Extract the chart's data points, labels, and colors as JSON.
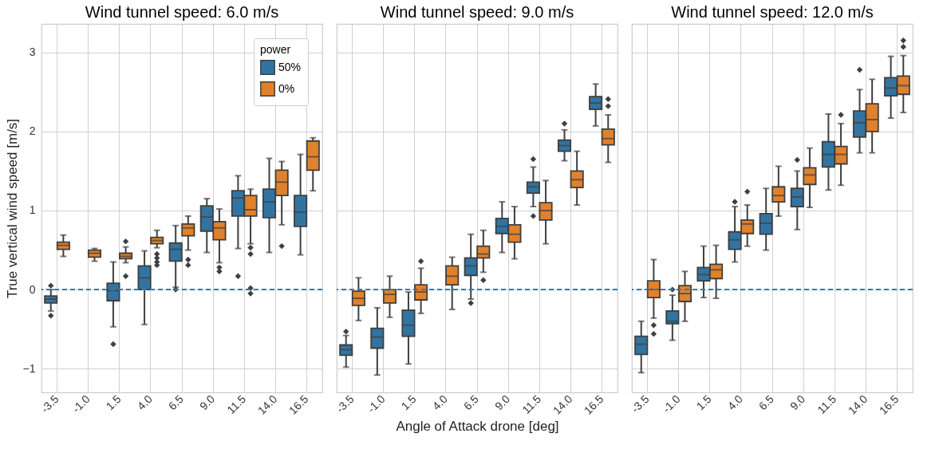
{
  "chart_data": [
    {
      "type": "box",
      "title": "Wind tunnel speed: 6.0 m/s",
      "ylabel": "True vertical wind speed [m/s]",
      "legend_title": "power",
      "legend": "top right",
      "grid": true,
      "categories": [
        "-3.5",
        "-1.0",
        "1.5",
        "4.0",
        "6.5",
        "9.0",
        "11.5",
        "14.0",
        "16.5"
      ],
      "ylim": [
        -1.3,
        3.36
      ],
      "yticks": [
        -1,
        0,
        1,
        2,
        3
      ],
      "ref_lines": [
        {
          "axis": "y",
          "value": 0,
          "color": "#2b7bba",
          "line_style": "dashed"
        }
      ],
      "series": [
        {
          "name": "50%",
          "color": "#3274a1",
          "boxes": [
            {
              "low": -0.27,
              "q1": -0.17,
              "median": -0.12,
              "q3": -0.08,
              "high": 0.0,
              "outliers": [
                0.05,
                -0.33
              ]
            },
            null,
            {
              "low": -0.47,
              "q1": -0.14,
              "median": -0.01,
              "q3": 0.08,
              "high": 0.35,
              "outliers": [
                -0.69
              ]
            },
            {
              "low": -0.44,
              "q1": 0.0,
              "median": 0.15,
              "q3": 0.3,
              "high": 0.49
            },
            {
              "low": 0.03,
              "q1": 0.36,
              "median": 0.51,
              "q3": 0.59,
              "high": 0.81,
              "outliers": [
                0.0
              ]
            },
            {
              "low": 0.47,
              "q1": 0.74,
              "median": 0.92,
              "q3": 1.06,
              "high": 1.15
            },
            {
              "low": 0.52,
              "q1": 0.93,
              "median": 1.16,
              "q3": 1.25,
              "high": 1.44,
              "outliers": [
                0.17
              ]
            },
            {
              "low": 0.47,
              "q1": 0.91,
              "median": 1.11,
              "q3": 1.27,
              "high": 1.66
            },
            {
              "low": 0.44,
              "q1": 0.8,
              "median": 0.98,
              "q3": 1.19,
              "high": 1.71
            }
          ]
        },
        {
          "name": "0%",
          "color": "#e1812c",
          "boxes": [
            {
              "low": 0.42,
              "q1": 0.51,
              "median": 0.56,
              "q3": 0.6,
              "high": 0.69
            },
            {
              "low": 0.36,
              "q1": 0.41,
              "median": 0.46,
              "q3": 0.5,
              "high": 0.52
            },
            {
              "low": 0.34,
              "q1": 0.39,
              "median": 0.42,
              "q3": 0.46,
              "high": 0.54,
              "outliers": [
                0.61,
                0.17
              ]
            },
            {
              "low": 0.53,
              "q1": 0.58,
              "median": 0.62,
              "q3": 0.66,
              "high": 0.75,
              "outliers": [
                0.45,
                0.4,
                0.35,
                0.31
              ]
            },
            {
              "low": 0.5,
              "q1": 0.68,
              "median": 0.78,
              "q3": 0.83,
              "high": 0.93,
              "outliers": [
                0.38,
                0.31
              ]
            },
            {
              "low": 0.34,
              "q1": 0.63,
              "median": 0.78,
              "q3": 0.86,
              "high": 1.02,
              "outliers": [
                0.28,
                0.23
              ]
            },
            {
              "low": 0.58,
              "q1": 0.93,
              "median": 1.01,
              "q3": 1.19,
              "high": 1.27,
              "outliers": [
                0.53,
                0.45,
                0.02,
                -0.05
              ]
            },
            {
              "low": 0.82,
              "q1": 1.19,
              "median": 1.36,
              "q3": 1.51,
              "high": 1.62,
              "outliers": [
                0.55
              ]
            },
            {
              "low": 1.25,
              "q1": 1.51,
              "median": 1.68,
              "q3": 1.88,
              "high": 1.92
            }
          ]
        }
      ]
    },
    {
      "type": "box",
      "title": "Wind tunnel speed: 9.0 m/s",
      "xlabel": "Angle of Attack drone [deg]",
      "grid": true,
      "tick_labels": "x",
      "categories": [
        "-3.5",
        "-1.0",
        "1.5",
        "4.0",
        "6.5",
        "9.0",
        "11.5",
        "14.0",
        "16.5"
      ],
      "ylim": [
        -1.3,
        3.36
      ],
      "yticks": [
        -1,
        0,
        1,
        2,
        3
      ],
      "ref_lines": [
        {
          "axis": "y",
          "value": 0,
          "color": "#2b7bba",
          "line_style": "dashed"
        }
      ],
      "series": [
        {
          "color": "#3274a1",
          "boxes": [
            {
              "low": -0.98,
              "q1": -0.83,
              "median": -0.76,
              "q3": -0.7,
              "high": -0.58,
              "outliers": [
                -0.53
              ]
            },
            {
              "low": -1.08,
              "q1": -0.74,
              "median": -0.6,
              "q3": -0.49,
              "high": -0.23
            },
            {
              "low": -0.94,
              "q1": -0.59,
              "median": -0.45,
              "q3": -0.26,
              "high": -0.03
            },
            null,
            {
              "low": -0.12,
              "q1": 0.18,
              "median": 0.3,
              "q3": 0.4,
              "high": 0.7,
              "outliers": [
                -0.17
              ]
            },
            {
              "low": 0.47,
              "q1": 0.71,
              "median": 0.8,
              "q3": 0.9,
              "high": 1.11
            },
            {
              "low": 1.05,
              "q1": 1.22,
              "median": 1.3,
              "q3": 1.36,
              "high": 1.55,
              "outliers": [
                1.65,
                0.93
              ]
            },
            {
              "low": 1.63,
              "q1": 1.75,
              "median": 1.82,
              "q3": 1.89,
              "high": 2.02,
              "outliers": [
                2.1
              ]
            },
            {
              "low": 2.07,
              "q1": 2.28,
              "median": 2.36,
              "q3": 2.44,
              "high": 2.6
            }
          ]
        },
        {
          "color": "#e1812c",
          "boxes": [
            {
              "low": -0.39,
              "q1": -0.2,
              "median": -0.11,
              "q3": -0.02,
              "high": 0.15
            },
            {
              "low": -0.35,
              "q1": -0.17,
              "median": -0.06,
              "q3": 0.0,
              "high": 0.17
            },
            {
              "low": -0.3,
              "q1": -0.13,
              "median": -0.03,
              "q3": 0.06,
              "high": 0.27,
              "outliers": [
                0.36
              ]
            },
            {
              "low": -0.25,
              "q1": 0.06,
              "median": 0.17,
              "q3": 0.3,
              "high": 0.41
            },
            {
              "low": 0.22,
              "q1": 0.4,
              "median": 0.45,
              "q3": 0.55,
              "high": 0.75,
              "outliers": [
                0.12
              ]
            },
            {
              "low": 0.39,
              "q1": 0.6,
              "median": 0.7,
              "q3": 0.82,
              "high": 1.05
            },
            {
              "low": 0.58,
              "q1": 0.88,
              "median": 1.0,
              "q3": 1.1,
              "high": 1.38
            },
            {
              "low": 1.07,
              "q1": 1.29,
              "median": 1.39,
              "q3": 1.5,
              "high": 1.75
            },
            {
              "low": 1.61,
              "q1": 1.83,
              "median": 1.91,
              "q3": 2.03,
              "high": 2.21,
              "outliers": [
                2.41,
                2.32
              ]
            }
          ]
        }
      ]
    },
    {
      "type": "box",
      "title": "Wind tunnel speed: 12.0 m/s",
      "grid": true,
      "tick_labels": "x",
      "categories": [
        "-3.5",
        "-1.0",
        "1.5",
        "4.0",
        "6.5",
        "9.0",
        "11.5",
        "14.0",
        "16.5"
      ],
      "ylim": [
        -1.3,
        3.36
      ],
      "yticks": [
        -1,
        0,
        1,
        2,
        3
      ],
      "ref_lines": [
        {
          "axis": "y",
          "value": 0,
          "color": "#2b7bba",
          "line_style": "dashed"
        }
      ],
      "series": [
        {
          "color": "#3274a1",
          "boxes": [
            {
              "low": -1.05,
              "q1": -0.82,
              "median": -0.69,
              "q3": -0.59,
              "high": -0.4
            },
            {
              "low": -0.64,
              "q1": -0.43,
              "median": -0.4,
              "q3": -0.27,
              "high": -0.07,
              "outliers": [
                0.0
              ]
            },
            {
              "low": -0.1,
              "q1": 0.11,
              "median": 0.19,
              "q3": 0.28,
              "high": 0.55
            },
            {
              "low": 0.35,
              "q1": 0.51,
              "median": 0.63,
              "q3": 0.73,
              "high": 1.05,
              "outliers": [
                1.11
              ]
            },
            {
              "low": 0.5,
              "q1": 0.7,
              "median": 0.84,
              "q3": 0.96,
              "high": 1.28
            },
            {
              "low": 0.76,
              "q1": 1.05,
              "median": 1.17,
              "q3": 1.28,
              "high": 1.5,
              "outliers": [
                1.64
              ]
            },
            {
              "low": 1.26,
              "q1": 1.55,
              "median": 1.71,
              "q3": 1.87,
              "high": 2.22
            },
            {
              "low": 1.73,
              "q1": 1.93,
              "median": 2.11,
              "q3": 2.26,
              "high": 2.53,
              "outliers": [
                2.78
              ]
            },
            {
              "low": 2.17,
              "q1": 2.45,
              "median": 2.55,
              "q3": 2.68,
              "high": 2.95
            }
          ]
        },
        {
          "color": "#e1812c",
          "boxes": [
            {
              "low": -0.36,
              "q1": -0.1,
              "median": 0.0,
              "q3": 0.11,
              "high": 0.38,
              "outliers": [
                -0.45,
                -0.56
              ]
            },
            {
              "low": -0.4,
              "q1": -0.15,
              "median": -0.05,
              "q3": 0.05,
              "high": 0.23
            },
            {
              "low": -0.11,
              "q1": 0.14,
              "median": 0.25,
              "q3": 0.32,
              "high": 0.56
            },
            {
              "low": 0.55,
              "q1": 0.71,
              "median": 0.83,
              "q3": 0.88,
              "high": 1.07,
              "outliers": [
                1.24
              ]
            },
            {
              "low": 0.93,
              "q1": 1.11,
              "median": 1.19,
              "q3": 1.3,
              "high": 1.56
            },
            {
              "low": 1.04,
              "q1": 1.33,
              "median": 1.45,
              "q3": 1.54,
              "high": 1.79
            },
            {
              "low": 1.32,
              "q1": 1.59,
              "median": 1.71,
              "q3": 1.81,
              "high": 2.1,
              "outliers": [
                2.21
              ]
            },
            {
              "low": 1.73,
              "q1": 2.0,
              "median": 2.15,
              "q3": 2.35,
              "high": 2.66
            },
            {
              "low": 2.24,
              "q1": 2.47,
              "median": 2.58,
              "q3": 2.7,
              "high": 2.96,
              "outliers": [
                3.15,
                3.07
              ]
            }
          ]
        }
      ]
    }
  ]
}
